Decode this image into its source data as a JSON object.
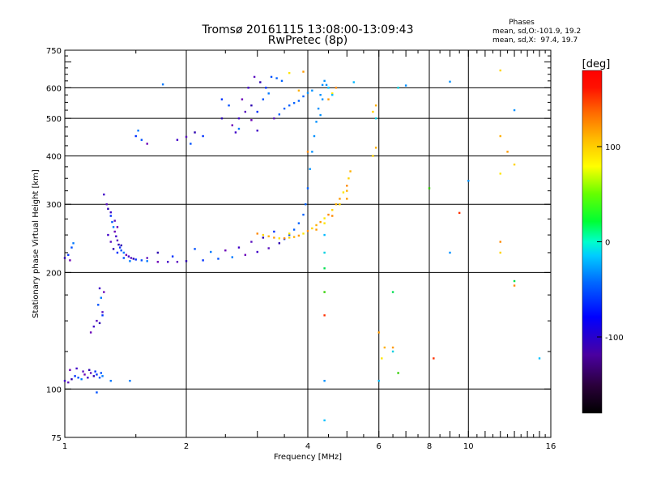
{
  "chart_data": {
    "type": "scatter",
    "title": "Tromsø 20161115 13:08:00-13:09:43",
    "subtitle": "RwPretec (8p)",
    "xlabel": "Frequency [MHz]",
    "ylabel": "Stationary phase Virtual Height [km]",
    "x_scale": "log",
    "y_scale": "log",
    "xlim": [
      1,
      16
    ],
    "ylim": [
      75,
      750
    ],
    "x_ticks": [
      1,
      2,
      4,
      6,
      8,
      10,
      16
    ],
    "x_tick_labels": [
      "1",
      "2",
      "4",
      "6",
      "8",
      "10",
      "16"
    ],
    "y_ticks": [
      75,
      100,
      200,
      300,
      400,
      500,
      600,
      750
    ],
    "y_tick_labels": [
      "75",
      "100",
      "200",
      "300",
      "400",
      "500",
      "600",
      "750"
    ],
    "grid": true,
    "colorbar": {
      "label": "[deg]",
      "range": [
        -180,
        180
      ],
      "ticks": [
        -100,
        0,
        100
      ],
      "tick_labels": [
        "-100",
        "0",
        "100"
      ]
    },
    "phase_stats": {
      "heading": "Phases",
      "line_o": "mean, sd,O:-101.9, 19.2",
      "line_x": "mean, sd,X:  97.4, 19.7"
    },
    "series": [
      {
        "points": [
          [
            1.0,
            105
          ],
          [
            1.02,
            104
          ],
          [
            1.04,
            106
          ],
          [
            1.06,
            108
          ],
          [
            1.08,
            107
          ],
          [
            1.1,
            106
          ],
          [
            1.12,
            109
          ],
          [
            1.14,
            107
          ],
          [
            1.16,
            110
          ],
          [
            1.18,
            108
          ],
          [
            1.2,
            109
          ],
          [
            1.22,
            107
          ],
          [
            1.24,
            108
          ],
          [
            1.03,
            112
          ],
          [
            1.07,
            113
          ],
          [
            1.11,
            111
          ],
          [
            1.15,
            112
          ],
          [
            1.19,
            111
          ],
          [
            1.23,
            110
          ],
          [
            1.3,
            105
          ],
          [
            1.16,
            140
          ],
          [
            1.18,
            145
          ],
          [
            1.2,
            150
          ],
          [
            1.22,
            148
          ],
          [
            1.24,
            155
          ],
          [
            1.21,
            165
          ],
          [
            1.23,
            172
          ],
          [
            1.25,
            178
          ],
          [
            1.22,
            182
          ],
          [
            1.24,
            158
          ],
          [
            1.0,
            218
          ],
          [
            1.02,
            222
          ],
          [
            1.04,
            232
          ],
          [
            1.05,
            238
          ],
          [
            1.03,
            215
          ],
          [
            1.25,
            318
          ],
          [
            1.27,
            300
          ],
          [
            1.28,
            292
          ],
          [
            1.3,
            280
          ],
          [
            1.31,
            270
          ],
          [
            1.32,
            262
          ],
          [
            1.33,
            255
          ],
          [
            1.34,
            248
          ],
          [
            1.35,
            242
          ],
          [
            1.36,
            236
          ],
          [
            1.37,
            232
          ],
          [
            1.38,
            228
          ],
          [
            1.4,
            225
          ],
          [
            1.42,
            222
          ],
          [
            1.44,
            220
          ],
          [
            1.46,
            218
          ],
          [
            1.48,
            217
          ],
          [
            1.5,
            216
          ],
          [
            1.55,
            215
          ],
          [
            1.6,
            214
          ],
          [
            1.7,
            213
          ],
          [
            1.8,
            213
          ],
          [
            1.9,
            213
          ],
          [
            2.0,
            214
          ],
          [
            2.2,
            215
          ],
          [
            2.4,
            217
          ],
          [
            2.6,
            219
          ],
          [
            2.8,
            222
          ],
          [
            3.0,
            226
          ],
          [
            3.2,
            231
          ],
          [
            3.4,
            238
          ],
          [
            3.5,
            244
          ],
          [
            3.6,
            250
          ],
          [
            3.7,
            258
          ],
          [
            3.8,
            268
          ],
          [
            3.9,
            282
          ],
          [
            3.95,
            300
          ],
          [
            4.0,
            330
          ],
          [
            4.05,
            370
          ],
          [
            4.1,
            410
          ],
          [
            4.15,
            450
          ],
          [
            4.2,
            490
          ],
          [
            4.25,
            530
          ],
          [
            4.3,
            575
          ],
          [
            4.35,
            610
          ],
          [
            4.4,
            625
          ],
          [
            4.45,
            610
          ],
          [
            4.35,
            560
          ],
          [
            4.3,
            510
          ],
          [
            1.28,
            250
          ],
          [
            1.3,
            240
          ],
          [
            1.32,
            230
          ],
          [
            1.35,
            225
          ],
          [
            1.4,
            218
          ],
          [
            1.45,
            214
          ],
          [
            1.35,
            262
          ],
          [
            1.3,
            286
          ],
          [
            1.33,
            272
          ],
          [
            1.38,
            235
          ],
          [
            1.5,
            450
          ],
          [
            1.55,
            440
          ],
          [
            1.52,
            465
          ],
          [
            1.6,
            430
          ],
          [
            1.9,
            440
          ],
          [
            2.0,
            448
          ],
          [
            2.1,
            460
          ],
          [
            2.2,
            450
          ],
          [
            2.05,
            430
          ],
          [
            1.75,
            612
          ],
          [
            2.6,
            480
          ],
          [
            2.7,
            500
          ],
          [
            2.8,
            520
          ],
          [
            2.9,
            540
          ],
          [
            3.0,
            520
          ],
          [
            3.1,
            560
          ],
          [
            3.2,
            580
          ],
          [
            2.75,
            560
          ],
          [
            2.85,
            600
          ],
          [
            2.95,
            640
          ],
          [
            3.05,
            620
          ],
          [
            3.15,
            600
          ],
          [
            3.25,
            640
          ],
          [
            3.35,
            635
          ],
          [
            3.45,
            625
          ],
          [
            2.65,
            460
          ],
          [
            3.3,
            500
          ],
          [
            3.4,
            512
          ],
          [
            3.5,
            530
          ],
          [
            3.6,
            540
          ],
          [
            3.7,
            548
          ],
          [
            3.8,
            555
          ],
          [
            3.9,
            570
          ],
          [
            4.0,
            582
          ],
          [
            4.1,
            590
          ],
          [
            2.45,
            560
          ],
          [
            2.55,
            540
          ],
          [
            2.7,
            470
          ],
          [
            2.9,
            495
          ],
          [
            3.0,
            465
          ],
          [
            1.6,
            218
          ],
          [
            1.7,
            225
          ],
          [
            1.85,
            220
          ],
          [
            2.1,
            230
          ],
          [
            2.3,
            226
          ],
          [
            2.5,
            228
          ],
          [
            2.7,
            232
          ],
          [
            2.9,
            240
          ],
          [
            3.1,
            246
          ],
          [
            3.3,
            255
          ],
          [
            1.2,
            98
          ],
          [
            1.45,
            105
          ],
          [
            7.0,
            608
          ],
          [
            9.0,
            622
          ],
          [
            13.0,
            525
          ],
          [
            2.45,
            500
          ]
        ]
      },
      {
        "points": [
          [
            3.1,
            250
          ],
          [
            3.2,
            248
          ],
          [
            3.3,
            246
          ],
          [
            3.4,
            245
          ],
          [
            3.5,
            245
          ],
          [
            3.6,
            246
          ],
          [
            3.7,
            247
          ],
          [
            3.8,
            249
          ],
          [
            3.9,
            252
          ],
          [
            4.0,
            256
          ],
          [
            4.1,
            260
          ],
          [
            4.2,
            265
          ],
          [
            4.3,
            270
          ],
          [
            4.4,
            276
          ],
          [
            4.5,
            282
          ],
          [
            4.6,
            290
          ],
          [
            4.7,
            300
          ],
          [
            4.8,
            310
          ],
          [
            4.9,
            322
          ],
          [
            5.0,
            335
          ],
          [
            5.05,
            350
          ],
          [
            5.1,
            365
          ],
          [
            4.2,
            258
          ],
          [
            4.4,
            268
          ],
          [
            4.6,
            280
          ],
          [
            4.8,
            300
          ],
          [
            5.0,
            325
          ],
          [
            5.0,
            310
          ],
          [
            3.6,
            252
          ],
          [
            3.0,
            252
          ],
          [
            5.8,
            520
          ],
          [
            5.9,
            540
          ],
          [
            4.5,
            560
          ],
          [
            4.6,
            580
          ],
          [
            4.7,
            600
          ],
          [
            12.0,
            665
          ],
          [
            12.0,
            450
          ],
          [
            12.5,
            410
          ],
          [
            12.0,
            360
          ],
          [
            12.0,
            240
          ],
          [
            12.0,
            225
          ],
          [
            3.8,
            590
          ],
          [
            3.9,
            660
          ],
          [
            3.6,
            655
          ],
          [
            4.0,
            410
          ],
          [
            5.8,
            400
          ],
          [
            5.9,
            420
          ],
          [
            6.0,
            140
          ],
          [
            6.1,
            120
          ],
          [
            13.0,
            185
          ],
          [
            13.0,
            380
          ],
          [
            6.2,
            128
          ],
          [
            6.5,
            128
          ]
        ]
      },
      {
        "points": [
          [
            4.4,
            250
          ],
          [
            4.4,
            225
          ],
          [
            4.4,
            205
          ],
          [
            4.4,
            178
          ],
          [
            4.4,
            155
          ],
          [
            4.4,
            105
          ],
          [
            4.4,
            83
          ],
          [
            6.0,
            105
          ],
          [
            6.5,
            125
          ],
          [
            6.5,
            178
          ],
          [
            6.7,
            110
          ],
          [
            9.5,
            285
          ],
          [
            10.0,
            345
          ],
          [
            15.0,
            120
          ],
          [
            5.2,
            620
          ],
          [
            6.7,
            600
          ],
          [
            13.0,
            190
          ],
          [
            8.0,
            330
          ],
          [
            8.2,
            120
          ],
          [
            9.0,
            225
          ],
          [
            4.5,
            600
          ],
          [
            4.6,
            575
          ],
          [
            5.9,
            500
          ]
        ]
      }
    ]
  }
}
